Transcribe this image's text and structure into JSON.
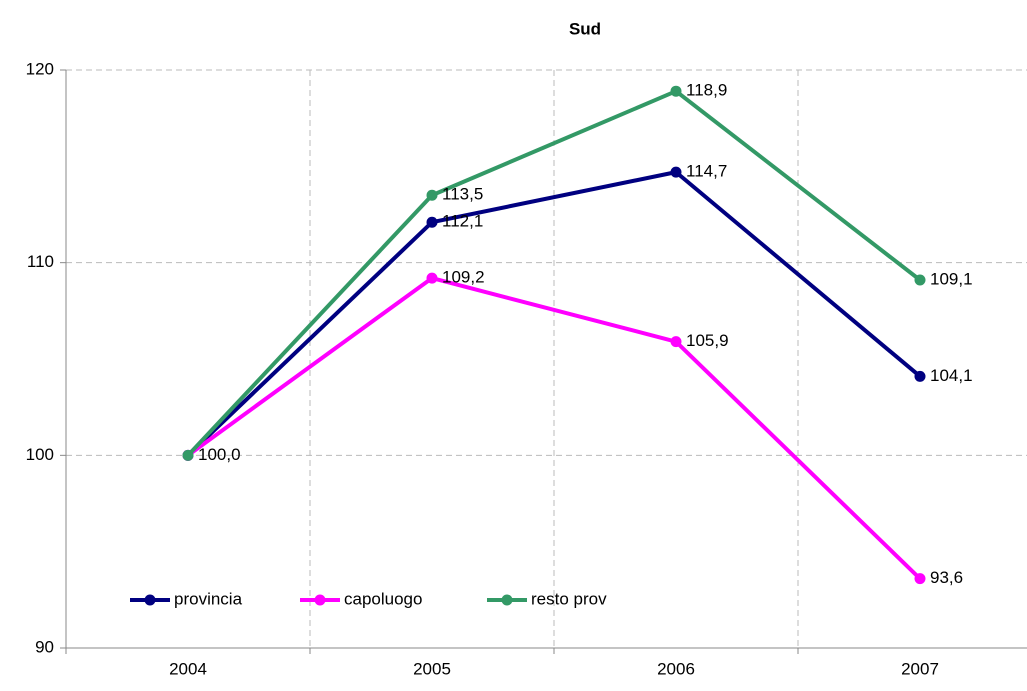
{
  "chart_data": {
    "type": "line",
    "title": "Sud",
    "categories": [
      "2004",
      "2005",
      "2006",
      "2007"
    ],
    "series": [
      {
        "name": "provincia",
        "color": "#000080",
        "values": [
          100.0,
          112.1,
          114.7,
          104.1
        ],
        "value_labels": [
          "100,0",
          "112,1",
          "114,7",
          "104,1"
        ]
      },
      {
        "name": "capoluogo",
        "color": "#ff00ff",
        "values": [
          100.0,
          109.2,
          105.9,
          93.6
        ],
        "value_labels": [
          null,
          "109,2",
          "105,9",
          "93,6"
        ]
      },
      {
        "name": "resto prov",
        "color": "#339966",
        "values": [
          100.0,
          113.5,
          118.9,
          109.1
        ],
        "value_labels": [
          null,
          "113,5",
          "118,9",
          "109,1"
        ]
      }
    ],
    "ylim": [
      90,
      120
    ],
    "yticks": [
      90,
      100,
      110,
      120
    ],
    "grid": true,
    "legend": "lower left"
  }
}
